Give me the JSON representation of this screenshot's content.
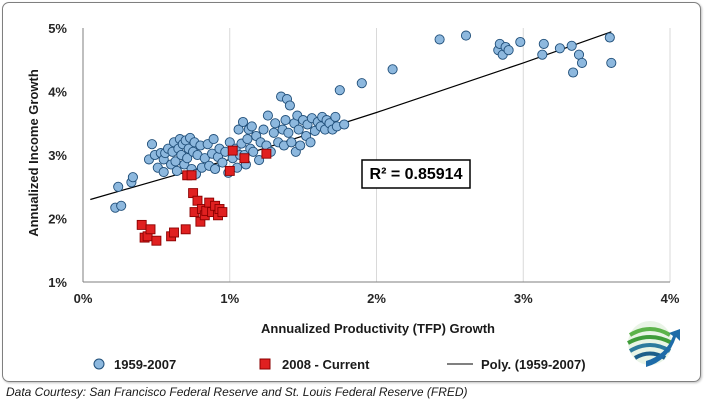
{
  "caption": "Data Courtesy: San Francisco Federal Reserve and St. Louis Federal Reserve (FRED)",
  "colors": {
    "series_blue": "#8db8de",
    "series_blue_edge": "#1f4e79",
    "series_red": "#e02020",
    "series_red_edge": "#8b0000",
    "trend": "#000000",
    "grid": "#d9d9d9"
  },
  "icons": {
    "logo": "globe-arrow-logo"
  },
  "chart_data": {
    "type": "scatter",
    "title": "",
    "xlabel": "Annualized Productivity (TFP) Growth",
    "ylabel": "Annualized Income Growth",
    "xlim": [
      0,
      4
    ],
    "ylim": [
      1,
      5
    ],
    "x_ticks": [
      0,
      1,
      2,
      3,
      4
    ],
    "x_tick_labels": [
      "0%",
      "1%",
      "2%",
      "3%",
      "4%"
    ],
    "y_ticks": [
      1,
      2,
      3,
      4,
      5
    ],
    "y_tick_labels": [
      "1%",
      "2%",
      "3%",
      "4%",
      "5%"
    ],
    "grid": "vertical",
    "legend_position": "bottom",
    "annotation": "R² = 0.85914",
    "series": [
      {
        "name": "1959-2007",
        "marker": "circle",
        "points": [
          [
            0.22,
            2.17
          ],
          [
            0.24,
            2.5
          ],
          [
            0.26,
            2.2
          ],
          [
            0.33,
            2.57
          ],
          [
            0.34,
            2.65
          ],
          [
            0.45,
            2.93
          ],
          [
            0.47,
            3.17
          ],
          [
            0.49,
            3.0
          ],
          [
            0.51,
            2.8
          ],
          [
            0.53,
            3.03
          ],
          [
            0.55,
            2.93
          ],
          [
            0.55,
            2.73
          ],
          [
            0.56,
            3.03
          ],
          [
            0.58,
            3.1
          ],
          [
            0.6,
            2.85
          ],
          [
            0.61,
            3.05
          ],
          [
            0.62,
            3.2
          ],
          [
            0.63,
            2.9
          ],
          [
            0.64,
            2.75
          ],
          [
            0.65,
            3.1
          ],
          [
            0.66,
            3.25
          ],
          [
            0.67,
            3.0
          ],
          [
            0.68,
            3.17
          ],
          [
            0.69,
            2.85
          ],
          [
            0.7,
            3.23
          ],
          [
            0.71,
            2.95
          ],
          [
            0.72,
            3.1
          ],
          [
            0.73,
            3.27
          ],
          [
            0.74,
            2.78
          ],
          [
            0.75,
            3.05
          ],
          [
            0.76,
            3.2
          ],
          [
            0.77,
            2.7
          ],
          [
            0.78,
            3.0
          ],
          [
            0.8,
            3.15
          ],
          [
            0.81,
            2.8
          ],
          [
            0.83,
            2.95
          ],
          [
            0.85,
            3.17
          ],
          [
            0.86,
            2.83
          ],
          [
            0.88,
            3.02
          ],
          [
            0.89,
            3.25
          ],
          [
            0.9,
            2.78
          ],
          [
            0.92,
            2.97
          ],
          [
            0.93,
            3.1
          ],
          [
            0.95,
            2.88
          ],
          [
            0.97,
            3.05
          ],
          [
            0.99,
            2.72
          ],
          [
            1.0,
            3.2
          ],
          [
            1.02,
            2.95
          ],
          [
            1.04,
            3.1
          ],
          [
            1.05,
            2.8
          ],
          [
            1.06,
            3.4
          ],
          [
            1.07,
            3.0
          ],
          [
            1.08,
            3.18
          ],
          [
            1.09,
            3.52
          ],
          [
            1.1,
            3.0
          ],
          [
            1.11,
            2.85
          ],
          [
            1.12,
            3.25
          ],
          [
            1.13,
            3.4
          ],
          [
            1.14,
            3.1
          ],
          [
            1.15,
            3.45
          ],
          [
            1.16,
            3.05
          ],
          [
            1.18,
            3.3
          ],
          [
            1.2,
            2.92
          ],
          [
            1.21,
            3.2
          ],
          [
            1.23,
            3.4
          ],
          [
            1.25,
            3.15
          ],
          [
            1.26,
            3.62
          ],
          [
            1.28,
            3.05
          ],
          [
            1.3,
            3.35
          ],
          [
            1.31,
            3.5
          ],
          [
            1.33,
            3.2
          ],
          [
            1.35,
            3.92
          ],
          [
            1.36,
            3.4
          ],
          [
            1.37,
            3.15
          ],
          [
            1.38,
            3.55
          ],
          [
            1.39,
            3.88
          ],
          [
            1.4,
            3.35
          ],
          [
            1.41,
            3.78
          ],
          [
            1.42,
            3.2
          ],
          [
            1.44,
            3.5
          ],
          [
            1.45,
            3.05
          ],
          [
            1.46,
            3.62
          ],
          [
            1.47,
            3.4
          ],
          [
            1.48,
            3.15
          ],
          [
            1.5,
            3.55
          ],
          [
            1.52,
            3.3
          ],
          [
            1.53,
            3.48
          ],
          [
            1.55,
            3.2
          ],
          [
            1.56,
            3.58
          ],
          [
            1.58,
            3.38
          ],
          [
            1.6,
            3.52
          ],
          [
            1.62,
            3.45
          ],
          [
            1.63,
            3.6
          ],
          [
            1.65,
            3.4
          ],
          [
            1.66,
            3.55
          ],
          [
            1.68,
            3.5
          ],
          [
            1.7,
            3.4
          ],
          [
            1.72,
            3.6
          ],
          [
            1.73,
            3.45
          ],
          [
            1.75,
            4.02
          ],
          [
            1.78,
            3.48
          ],
          [
            1.9,
            4.13
          ],
          [
            2.11,
            4.35
          ],
          [
            2.43,
            4.82
          ],
          [
            2.61,
            4.88
          ],
          [
            2.83,
            4.65
          ],
          [
            2.84,
            4.75
          ],
          [
            2.86,
            4.58
          ],
          [
            2.88,
            4.7
          ],
          [
            2.9,
            4.65
          ],
          [
            2.98,
            4.78
          ],
          [
            3.13,
            4.58
          ],
          [
            3.14,
            4.75
          ],
          [
            3.25,
            4.68
          ],
          [
            3.33,
            4.72
          ],
          [
            3.34,
            4.3
          ],
          [
            3.38,
            4.58
          ],
          [
            3.4,
            4.45
          ],
          [
            3.59,
            4.85
          ],
          [
            3.6,
            4.45
          ]
        ]
      },
      {
        "name": "2008 - Current",
        "marker": "square",
        "points": [
          [
            0.4,
            1.9
          ],
          [
            0.42,
            1.7
          ],
          [
            0.44,
            1.72
          ],
          [
            0.46,
            1.83
          ],
          [
            0.5,
            1.65
          ],
          [
            0.6,
            1.72
          ],
          [
            0.62,
            1.78
          ],
          [
            0.7,
            1.83
          ],
          [
            0.71,
            2.68
          ],
          [
            0.74,
            2.68
          ],
          [
            0.75,
            2.4
          ],
          [
            0.76,
            2.1
          ],
          [
            0.78,
            2.28
          ],
          [
            0.8,
            1.95
          ],
          [
            0.81,
            2.15
          ],
          [
            0.83,
            2.05
          ],
          [
            0.84,
            2.12
          ],
          [
            0.86,
            2.25
          ],
          [
            0.88,
            2.1
          ],
          [
            0.9,
            2.2
          ],
          [
            0.92,
            2.05
          ],
          [
            0.93,
            2.15
          ],
          [
            0.95,
            2.1
          ],
          [
            1.0,
            2.75
          ],
          [
            1.02,
            3.07
          ],
          [
            1.1,
            2.95
          ],
          [
            1.25,
            3.02
          ]
        ]
      }
    ],
    "trendline": {
      "name": "Poly. (1959-2007)",
      "type": "polynomial",
      "r_squared": 0.85914,
      "points": [
        [
          0.05,
          2.3
        ],
        [
          1.0,
          2.93
        ],
        [
          2.0,
          3.67
        ],
        [
          3.0,
          4.45
        ],
        [
          3.6,
          4.94
        ]
      ]
    }
  }
}
